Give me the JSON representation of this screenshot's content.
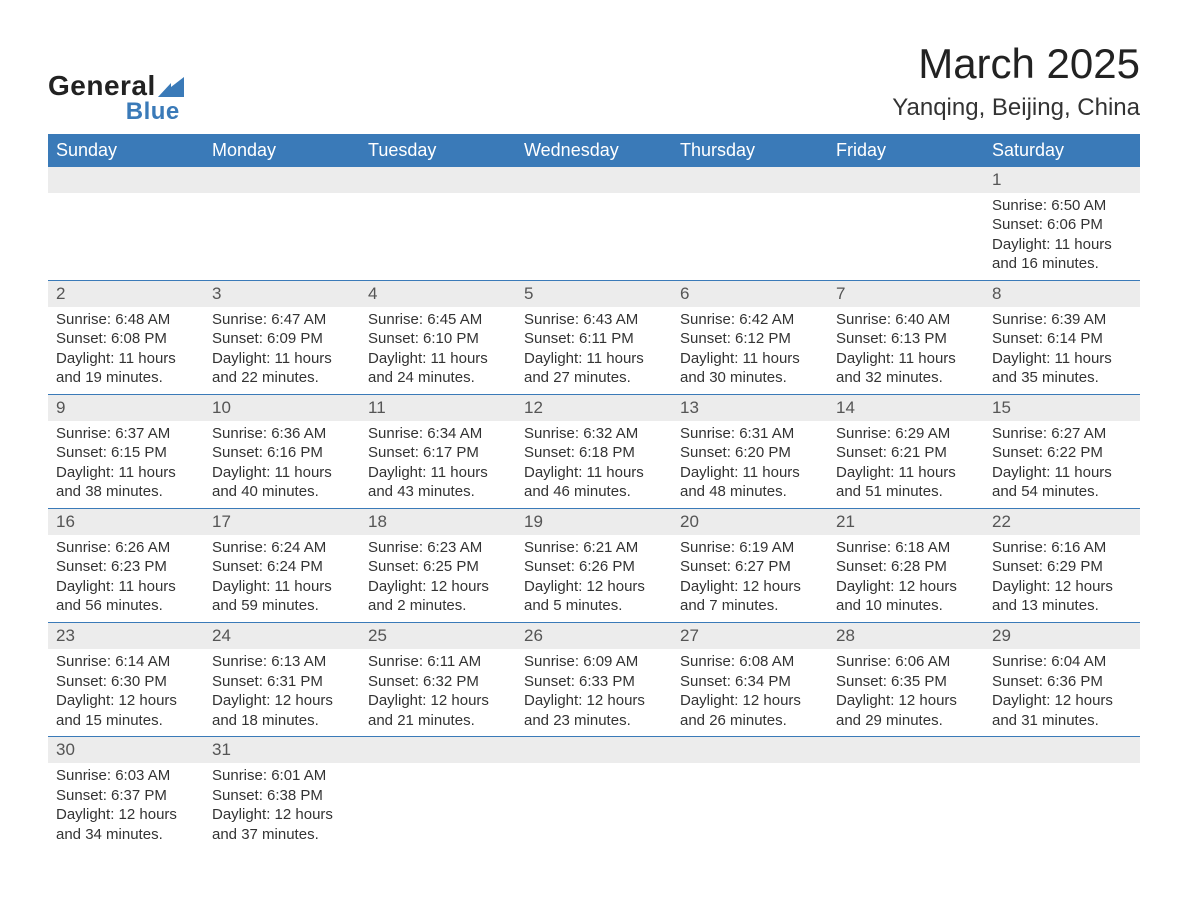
{
  "logo": {
    "line1": "General",
    "line2": "Blue"
  },
  "title": "March 2025",
  "subtitle": "Yanqing, Beijing, China",
  "colors": {
    "header_blue": "#3a7ab8",
    "daynum_bg": "#ececec",
    "text": "#333333",
    "header_text": "#ffffff",
    "body_bg": "#ffffff",
    "logo_dark": "#222222",
    "logo_blue": "#3a7ab8"
  },
  "fontsize": {
    "title": 42,
    "subtitle": 24,
    "day_header": 18,
    "daynum": 17,
    "cell": 15
  },
  "day_headers": [
    "Sunday",
    "Monday",
    "Tuesday",
    "Wednesday",
    "Thursday",
    "Friday",
    "Saturday"
  ],
  "weeks": [
    [
      null,
      null,
      null,
      null,
      null,
      null,
      {
        "n": "1",
        "sunrise": "Sunrise: 6:50 AM",
        "sunset": "Sunset: 6:06 PM",
        "daylight": "Daylight: 11 hours and 16 minutes."
      }
    ],
    [
      {
        "n": "2",
        "sunrise": "Sunrise: 6:48 AM",
        "sunset": "Sunset: 6:08 PM",
        "daylight": "Daylight: 11 hours and 19 minutes."
      },
      {
        "n": "3",
        "sunrise": "Sunrise: 6:47 AM",
        "sunset": "Sunset: 6:09 PM",
        "daylight": "Daylight: 11 hours and 22 minutes."
      },
      {
        "n": "4",
        "sunrise": "Sunrise: 6:45 AM",
        "sunset": "Sunset: 6:10 PM",
        "daylight": "Daylight: 11 hours and 24 minutes."
      },
      {
        "n": "5",
        "sunrise": "Sunrise: 6:43 AM",
        "sunset": "Sunset: 6:11 PM",
        "daylight": "Daylight: 11 hours and 27 minutes."
      },
      {
        "n": "6",
        "sunrise": "Sunrise: 6:42 AM",
        "sunset": "Sunset: 6:12 PM",
        "daylight": "Daylight: 11 hours and 30 minutes."
      },
      {
        "n": "7",
        "sunrise": "Sunrise: 6:40 AM",
        "sunset": "Sunset: 6:13 PM",
        "daylight": "Daylight: 11 hours and 32 minutes."
      },
      {
        "n": "8",
        "sunrise": "Sunrise: 6:39 AM",
        "sunset": "Sunset: 6:14 PM",
        "daylight": "Daylight: 11 hours and 35 minutes."
      }
    ],
    [
      {
        "n": "9",
        "sunrise": "Sunrise: 6:37 AM",
        "sunset": "Sunset: 6:15 PM",
        "daylight": "Daylight: 11 hours and 38 minutes."
      },
      {
        "n": "10",
        "sunrise": "Sunrise: 6:36 AM",
        "sunset": "Sunset: 6:16 PM",
        "daylight": "Daylight: 11 hours and 40 minutes."
      },
      {
        "n": "11",
        "sunrise": "Sunrise: 6:34 AM",
        "sunset": "Sunset: 6:17 PM",
        "daylight": "Daylight: 11 hours and 43 minutes."
      },
      {
        "n": "12",
        "sunrise": "Sunrise: 6:32 AM",
        "sunset": "Sunset: 6:18 PM",
        "daylight": "Daylight: 11 hours and 46 minutes."
      },
      {
        "n": "13",
        "sunrise": "Sunrise: 6:31 AM",
        "sunset": "Sunset: 6:20 PM",
        "daylight": "Daylight: 11 hours and 48 minutes."
      },
      {
        "n": "14",
        "sunrise": "Sunrise: 6:29 AM",
        "sunset": "Sunset: 6:21 PM",
        "daylight": "Daylight: 11 hours and 51 minutes."
      },
      {
        "n": "15",
        "sunrise": "Sunrise: 6:27 AM",
        "sunset": "Sunset: 6:22 PM",
        "daylight": "Daylight: 11 hours and 54 minutes."
      }
    ],
    [
      {
        "n": "16",
        "sunrise": "Sunrise: 6:26 AM",
        "sunset": "Sunset: 6:23 PM",
        "daylight": "Daylight: 11 hours and 56 minutes."
      },
      {
        "n": "17",
        "sunrise": "Sunrise: 6:24 AM",
        "sunset": "Sunset: 6:24 PM",
        "daylight": "Daylight: 11 hours and 59 minutes."
      },
      {
        "n": "18",
        "sunrise": "Sunrise: 6:23 AM",
        "sunset": "Sunset: 6:25 PM",
        "daylight": "Daylight: 12 hours and 2 minutes."
      },
      {
        "n": "19",
        "sunrise": "Sunrise: 6:21 AM",
        "sunset": "Sunset: 6:26 PM",
        "daylight": "Daylight: 12 hours and 5 minutes."
      },
      {
        "n": "20",
        "sunrise": "Sunrise: 6:19 AM",
        "sunset": "Sunset: 6:27 PM",
        "daylight": "Daylight: 12 hours and 7 minutes."
      },
      {
        "n": "21",
        "sunrise": "Sunrise: 6:18 AM",
        "sunset": "Sunset: 6:28 PM",
        "daylight": "Daylight: 12 hours and 10 minutes."
      },
      {
        "n": "22",
        "sunrise": "Sunrise: 6:16 AM",
        "sunset": "Sunset: 6:29 PM",
        "daylight": "Daylight: 12 hours and 13 minutes."
      }
    ],
    [
      {
        "n": "23",
        "sunrise": "Sunrise: 6:14 AM",
        "sunset": "Sunset: 6:30 PM",
        "daylight": "Daylight: 12 hours and 15 minutes."
      },
      {
        "n": "24",
        "sunrise": "Sunrise: 6:13 AM",
        "sunset": "Sunset: 6:31 PM",
        "daylight": "Daylight: 12 hours and 18 minutes."
      },
      {
        "n": "25",
        "sunrise": "Sunrise: 6:11 AM",
        "sunset": "Sunset: 6:32 PM",
        "daylight": "Daylight: 12 hours and 21 minutes."
      },
      {
        "n": "26",
        "sunrise": "Sunrise: 6:09 AM",
        "sunset": "Sunset: 6:33 PM",
        "daylight": "Daylight: 12 hours and 23 minutes."
      },
      {
        "n": "27",
        "sunrise": "Sunrise: 6:08 AM",
        "sunset": "Sunset: 6:34 PM",
        "daylight": "Daylight: 12 hours and 26 minutes."
      },
      {
        "n": "28",
        "sunrise": "Sunrise: 6:06 AM",
        "sunset": "Sunset: 6:35 PM",
        "daylight": "Daylight: 12 hours and 29 minutes."
      },
      {
        "n": "29",
        "sunrise": "Sunrise: 6:04 AM",
        "sunset": "Sunset: 6:36 PM",
        "daylight": "Daylight: 12 hours and 31 minutes."
      }
    ],
    [
      {
        "n": "30",
        "sunrise": "Sunrise: 6:03 AM",
        "sunset": "Sunset: 6:37 PM",
        "daylight": "Daylight: 12 hours and 34 minutes."
      },
      {
        "n": "31",
        "sunrise": "Sunrise: 6:01 AM",
        "sunset": "Sunset: 6:38 PM",
        "daylight": "Daylight: 12 hours and 37 minutes."
      },
      null,
      null,
      null,
      null,
      null
    ]
  ]
}
